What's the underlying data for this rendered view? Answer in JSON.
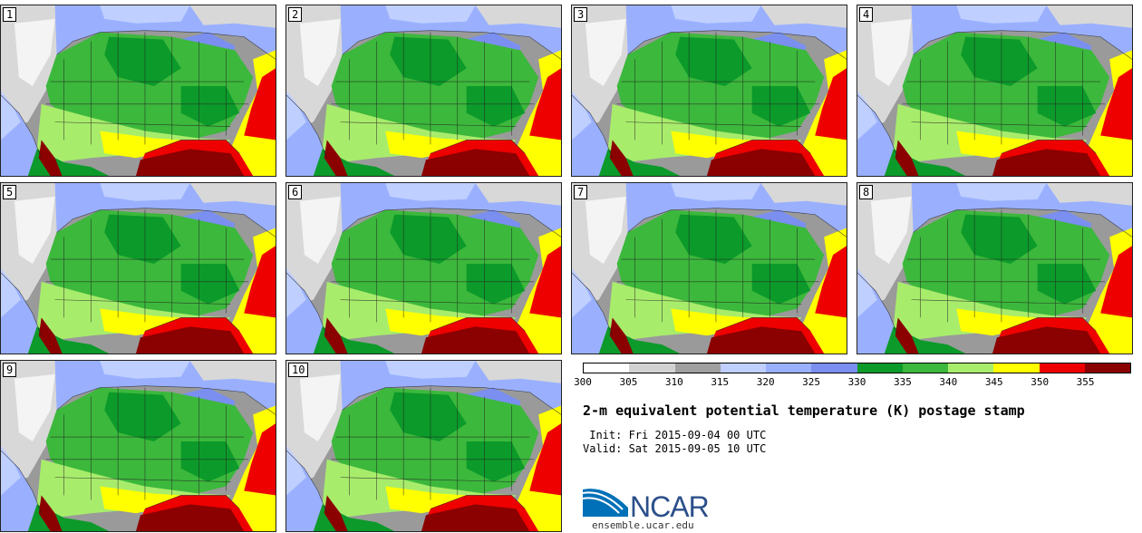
{
  "panels": [
    "1",
    "2",
    "3",
    "4",
    "5",
    "6",
    "7",
    "8",
    "9",
    "10"
  ],
  "colorbar": {
    "ticks": [
      "300",
      "305",
      "310",
      "315",
      "320",
      "325",
      "330",
      "335",
      "340",
      "345",
      "350",
      "355"
    ],
    "colors": [
      "#ffffff",
      "#d2d2d2",
      "#a0a0a0",
      "#bfcfff",
      "#9ab0ff",
      "#7a8ff0",
      "#0c9a2a",
      "#3cb83c",
      "#a8ec6c",
      "#ffff00",
      "#ee0000",
      "#8b0000"
    ]
  },
  "title": "2-m equivalent potential temperature (K) postage stamp",
  "init": " Init: Fri 2015-09-04 00 UTC",
  "valid": "Valid: Sat 2015-09-05 10 UTC",
  "logo_text": "NCAR",
  "site": "ensemble.ucar.edu"
}
